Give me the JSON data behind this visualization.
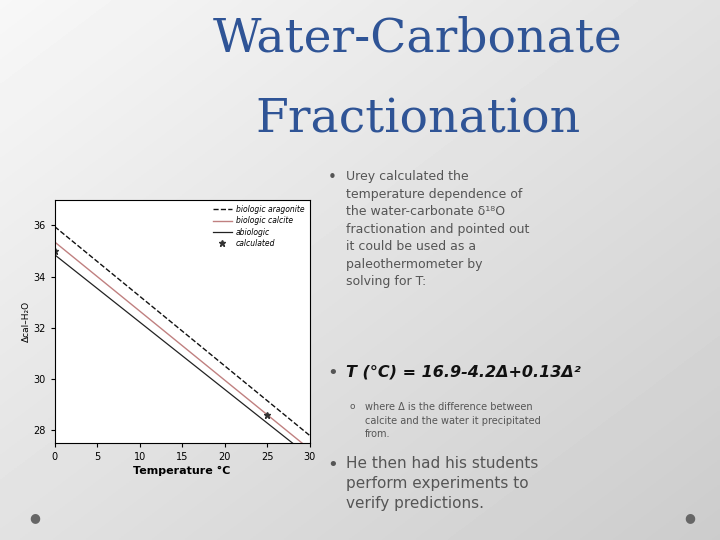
{
  "title_line1": "Water-Carbonate",
  "title_line2": "Fractionation",
  "title_color": "#2F5496",
  "title_fontsize": 34,
  "bg_left_color": "#FFFFFF",
  "bg_right_color": "#C8C8C8",
  "bullet1_text": "Urey calculated the\ntemperature dependence of\nthe water-carbonate δ¹⁸O\nfractionation and pointed out\nit could be used as a\npaleothermometer by\nsolving for T:",
  "bullet2_text": "T (°C) = 16.9-4.2Δ+0.13Δ²",
  "subbullet_text": "where Δ is the difference between\ncalcite and the water it precipitated\nfrom.",
  "bullet3_text": "He then had his students\nperform experiments to\nverify predictions.",
  "xlabel": "Temperature °C",
  "ylabel": "Δcal–H₂O",
  "xlim": [
    0,
    30
  ],
  "ylim": [
    27.5,
    37
  ],
  "xticks": [
    0,
    5,
    10,
    15,
    20,
    25,
    30
  ],
  "yticks": [
    28,
    30,
    32,
    34,
    36
  ],
  "plot_bgcolor": "#FFFFFF",
  "text_color": "#555555",
  "dot_color": "#666666"
}
